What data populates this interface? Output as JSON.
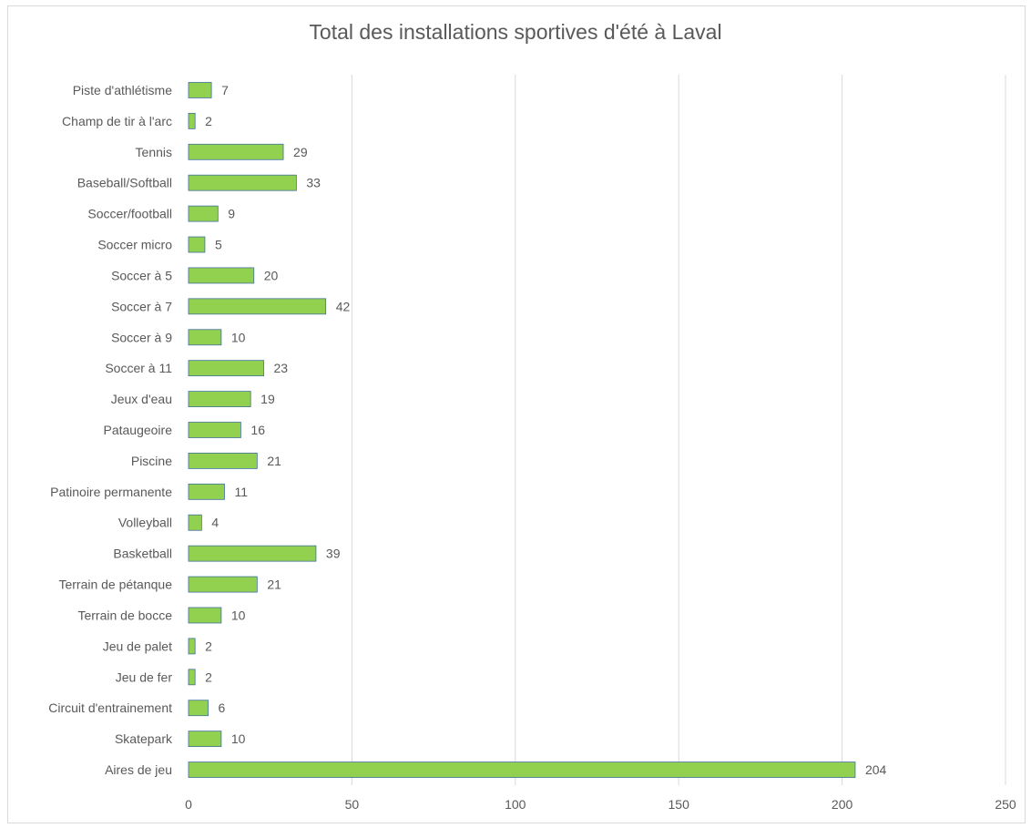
{
  "chart_data": {
    "type": "bar",
    "orientation": "horizontal",
    "title": "Total des installations sportives d'été à Laval",
    "xlabel": "",
    "ylabel": "",
    "xlim": [
      0,
      250
    ],
    "x_ticks": [
      "0",
      "50",
      "100",
      "150",
      "200",
      "250"
    ],
    "grid": true,
    "categories": [
      "Piste d'athlétisme",
      "Champ de tir à l'arc",
      "Tennis",
      "Baseball/Softball",
      "Soccer/football",
      "Soccer micro",
      "Soccer à 5",
      "Soccer à 7",
      "Soccer à 9",
      "Soccer à 11",
      "Jeux d'eau",
      "Pataugeoire",
      "Piscine",
      "Patinoire permanente",
      "Volleyball",
      "Basketball",
      "Terrain de pétanque",
      "Terrain de bocce",
      "Jeu de palet",
      "Jeu de fer",
      "Circuit d'entrainement",
      "Skatepark",
      "Aires de jeu"
    ],
    "values": [
      7,
      2,
      29,
      33,
      9,
      5,
      20,
      42,
      10,
      23,
      19,
      16,
      21,
      11,
      4,
      39,
      21,
      10,
      2,
      2,
      6,
      10,
      204
    ],
    "colors": {
      "bar_fill": "#92d050",
      "bar_stroke": "#41719c",
      "grid": "#d9d9d9",
      "text": "#595959"
    }
  }
}
